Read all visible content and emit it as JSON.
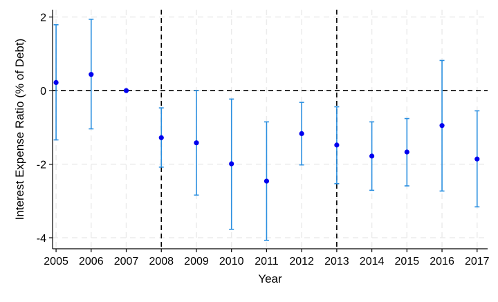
{
  "chart_data": {
    "type": "scatter",
    "title": "",
    "xlabel": "Year",
    "ylabel": "Interest Expense Ratio (% of Debt)",
    "x": [
      2005,
      2006,
      2007,
      2008,
      2009,
      2010,
      2011,
      2012,
      2013,
      2014,
      2015,
      2016,
      2017
    ],
    "x_tick_labels": [
      "2005",
      "2006",
      "2007",
      "2008",
      "2009",
      "2010",
      "2011",
      "2012",
      "2013",
      "2014",
      "2015",
      "2016",
      "2017"
    ],
    "y_tick_values": [
      2,
      0,
      -2,
      -4
    ],
    "y_tick_labels": [
      "2",
      "0",
      "-2",
      "-4"
    ],
    "xlim": [
      2004.9,
      2017.3
    ],
    "ylim": [
      -4.3,
      2.2
    ],
    "grid": true,
    "series": [
      {
        "estimate": [
          0.22,
          0.44,
          0.0,
          -1.28,
          -1.42,
          -1.99,
          -2.46,
          -1.17,
          -1.48,
          -1.78,
          -1.67,
          -0.95,
          -1.86
        ],
        "ci_lower": [
          -1.34,
          -1.04,
          0.0,
          -2.08,
          -2.84,
          -3.77,
          -4.07,
          -2.02,
          -2.53,
          -2.71,
          -2.59,
          -2.73,
          -3.16
        ],
        "ci_upper": [
          1.79,
          1.94,
          0.0,
          -0.47,
          0.0,
          -0.23,
          -0.85,
          -0.32,
          -0.44,
          -0.85,
          -0.76,
          0.82,
          -0.55
        ]
      }
    ],
    "reference_lines": {
      "horizontal": [
        0
      ],
      "vertical": [
        2008,
        2013
      ]
    },
    "colors": {
      "point": "#0000ee",
      "error_bar": "#2a8fe0",
      "reference": "#000000",
      "grid": "#ebebeb",
      "axis": "#000000"
    }
  }
}
